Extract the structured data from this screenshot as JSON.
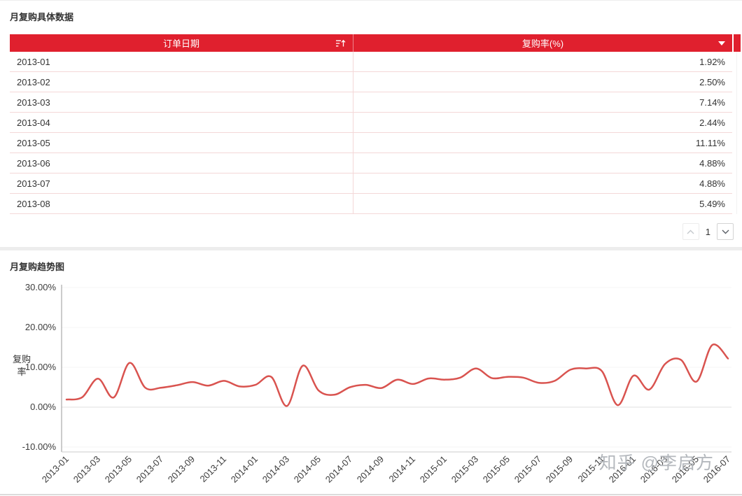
{
  "colors": {
    "header_red": "#e0202e",
    "line_red": "#d9534f",
    "row_border": "#f4d8d8",
    "divider_gray": "#ededed"
  },
  "table_section": {
    "title": "月复购具体数据",
    "columns": {
      "date_label": "订单日期",
      "rate_label": "复购率(%)"
    },
    "rows": [
      {
        "date": "2013-01",
        "rate": "1.92%"
      },
      {
        "date": "2013-02",
        "rate": "2.50%"
      },
      {
        "date": "2013-03",
        "rate": "7.14%"
      },
      {
        "date": "2013-04",
        "rate": "2.44%"
      },
      {
        "date": "2013-05",
        "rate": "11.11%"
      },
      {
        "date": "2013-06",
        "rate": "4.88%"
      },
      {
        "date": "2013-07",
        "rate": "4.88%"
      },
      {
        "date": "2013-08",
        "rate": "5.49%"
      }
    ],
    "pagination": {
      "page": "1"
    }
  },
  "chart_section": {
    "title": "月复购趋势图",
    "watermark": "知乎 @李启方"
  },
  "chart_data": {
    "type": "line",
    "title": "月复购趋势图",
    "xlabel": "",
    "ylabel": "复购率",
    "ylim": [
      -10,
      30
    ],
    "grid": true,
    "legend": "none",
    "y_ticks": [
      {
        "value": 30,
        "label": "30.00%"
      },
      {
        "value": 20,
        "label": "20.00%"
      },
      {
        "value": 10,
        "label": "10.00%"
      },
      {
        "value": 0,
        "label": "0.00%"
      },
      {
        "value": -10,
        "label": "-10.00%"
      }
    ],
    "x_tick_every": 2,
    "x": [
      "2013-01",
      "2013-02",
      "2013-03",
      "2013-04",
      "2013-05",
      "2013-06",
      "2013-07",
      "2013-08",
      "2013-09",
      "2013-10",
      "2013-11",
      "2013-12",
      "2014-01",
      "2014-02",
      "2014-03",
      "2014-04",
      "2014-05",
      "2014-06",
      "2014-07",
      "2014-08",
      "2014-09",
      "2014-10",
      "2014-11",
      "2014-12",
      "2015-01",
      "2015-02",
      "2015-03",
      "2015-04",
      "2015-05",
      "2015-06",
      "2015-07",
      "2015-08",
      "2015-09",
      "2015-10",
      "2015-11",
      "2015-12",
      "2016-01",
      "2016-02",
      "2016-03",
      "2016-04",
      "2016-05",
      "2016-06",
      "2016-07"
    ],
    "series": [
      {
        "name": "复购率",
        "color": "#d9534f",
        "values": [
          1.92,
          2.5,
          7.14,
          2.44,
          11.11,
          4.88,
          4.88,
          5.49,
          6.3,
          5.4,
          6.6,
          5.2,
          5.6,
          7.6,
          0.3,
          10.4,
          4.2,
          3.1,
          5.0,
          5.6,
          4.8,
          6.9,
          5.8,
          7.2,
          6.9,
          7.4,
          9.7,
          7.3,
          7.6,
          7.4,
          6.1,
          6.6,
          9.4,
          9.7,
          9.0,
          0.5,
          7.9,
          4.4,
          10.8,
          11.9,
          6.4,
          15.6,
          12.2
        ]
      }
    ]
  }
}
